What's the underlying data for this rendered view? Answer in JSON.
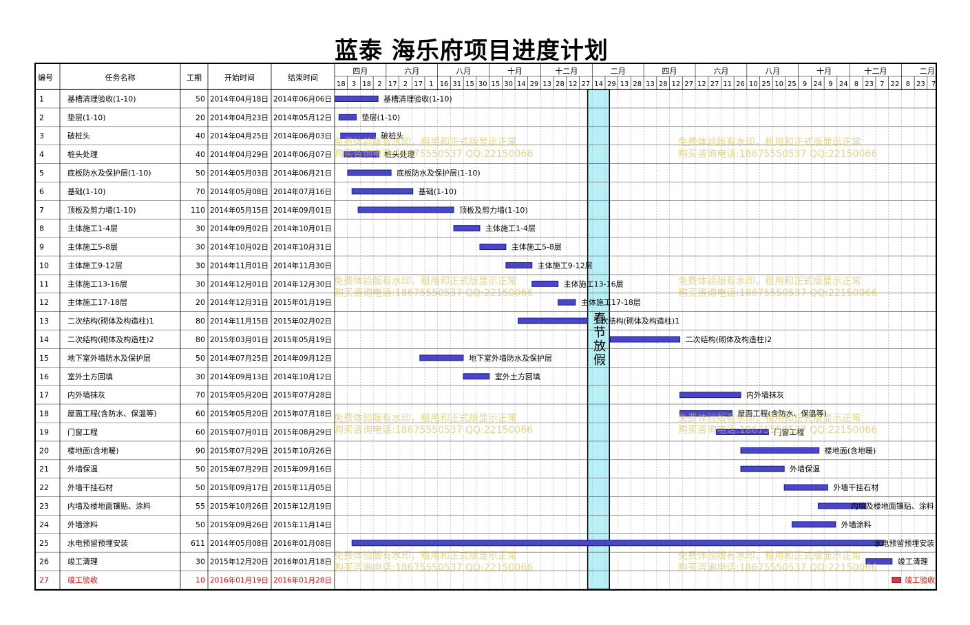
{
  "title": "蓝泰 海乐府项目进度计划",
  "columns": {
    "id": "编号",
    "name": "任务名称",
    "dur": "工期",
    "start": "开始时间",
    "end": "结束时间"
  },
  "chart_data": {
    "type": "gantt",
    "title": "蓝泰 海乐府项目进度计划",
    "month_labels": [
      "四月",
      "六月",
      "八月",
      "十月",
      "十二月",
      "二月",
      "四月",
      "六月",
      "八月",
      "十月",
      "十二月",
      "二月"
    ],
    "day_ticks": [
      "18",
      "3",
      "18",
      "2",
      "17",
      "2",
      "17",
      "1",
      "16",
      "31",
      "15",
      "30",
      "15",
      "30",
      "14",
      "29",
      "13",
      "28",
      "12",
      "27",
      "14",
      "29",
      "13",
      "28",
      "13",
      "28",
      "12",
      "27",
      "12",
      "27",
      "11",
      "26",
      "10",
      "25",
      "10",
      "25",
      "9",
      "24",
      "9",
      "24",
      "8",
      "23",
      "7",
      "22",
      "8",
      "23",
      "7"
    ],
    "holiday_label": "春节放假",
    "tasks": [
      {
        "id": "1",
        "name": "基槽清理验收(1-10)",
        "duration": 50,
        "start": "2014年04月18日",
        "end": "2014年06月06日"
      },
      {
        "id": "2",
        "name": "垫层(1-10)",
        "duration": 20,
        "start": "2014年04月23日",
        "end": "2014年05月12日"
      },
      {
        "id": "3",
        "name": "破桩头",
        "duration": 40,
        "start": "2014年04月25日",
        "end": "2014年06月03日"
      },
      {
        "id": "4",
        "name": "桩头处理",
        "duration": 40,
        "start": "2014年04月29日",
        "end": "2014年06月07日"
      },
      {
        "id": "5",
        "name": "底板防水及保护层(1-10)",
        "duration": 50,
        "start": "2014年05月03日",
        "end": "2014年06月21日"
      },
      {
        "id": "6",
        "name": "基础(1-10)",
        "duration": 70,
        "start": "2014年05月08日",
        "end": "2014年07月16日"
      },
      {
        "id": "7",
        "name": "顶板及剪力墙(1-10)",
        "duration": 110,
        "start": "2014年05月15日",
        "end": "2014年09月01日"
      },
      {
        "id": "8",
        "name": "主体施工1-4层",
        "duration": 30,
        "start": "2014年09月02日",
        "end": "2014年10月01日"
      },
      {
        "id": "9",
        "name": "主体施工5-8层",
        "duration": 30,
        "start": "2014年10月02日",
        "end": "2014年10月31日"
      },
      {
        "id": "10",
        "name": "主体施工9-12层",
        "duration": 30,
        "start": "2014年11月01日",
        "end": "2014年11月30日"
      },
      {
        "id": "11",
        "name": "主体施工13-16层",
        "duration": 30,
        "start": "2014年12月01日",
        "end": "2014年12月30日"
      },
      {
        "id": "12",
        "name": "主体施工17-18层",
        "duration": 20,
        "start": "2014年12月31日",
        "end": "2015年01月19日"
      },
      {
        "id": "13",
        "name": "二次结构(砌体及构造柱)1",
        "duration": 80,
        "start": "2014年11月15日",
        "end": "2015年02月02日"
      },
      {
        "id": "14",
        "name": "二次结构(砌体及构造柱)2",
        "duration": 80,
        "start": "2015年03月01日",
        "end": "2015年05月19日"
      },
      {
        "id": "15",
        "name": "地下室外墙防水及保护层",
        "duration": 50,
        "start": "2014年07月25日",
        "end": "2014年09月12日"
      },
      {
        "id": "16",
        "name": "室外土方回填",
        "duration": 30,
        "start": "2014年09月13日",
        "end": "2014年10月12日"
      },
      {
        "id": "17",
        "name": "内外墙抹灰",
        "duration": 70,
        "start": "2015年05月20日",
        "end": "2015年07月28日"
      },
      {
        "id": "18",
        "name": "屋面工程(含防水、保温等)",
        "duration": 60,
        "start": "2015年05月20日",
        "end": "2015年07月18日"
      },
      {
        "id": "19",
        "name": "门窗工程",
        "duration": 60,
        "start": "2015年07月01日",
        "end": "2015年08月29日"
      },
      {
        "id": "20",
        "name": "楼地面(含地暖)",
        "duration": 90,
        "start": "2015年07月29日",
        "end": "2015年10月26日"
      },
      {
        "id": "21",
        "name": "外墙保温",
        "duration": 50,
        "start": "2015年07月29日",
        "end": "2015年09月16日"
      },
      {
        "id": "22",
        "name": "外墙干挂石材",
        "duration": 50,
        "start": "2015年09月17日",
        "end": "2015年11月05日"
      },
      {
        "id": "23",
        "name": "内墙及楼地面镶贴、涂料",
        "duration": 55,
        "start": "2015年10月26日",
        "end": "2015年12月19日"
      },
      {
        "id": "24",
        "name": "外墙涂料",
        "duration": 50,
        "start": "2015年09月26日",
        "end": "2015年11月14日"
      },
      {
        "id": "25",
        "name": "水电预留预埋安装",
        "duration": 611,
        "start": "2014年05月08日",
        "end": "2016年01月08日"
      },
      {
        "id": "26",
        "name": "竣工清理",
        "duration": 30,
        "start": "2015年12月20日",
        "end": "2016年01月18日"
      },
      {
        "id": "27",
        "name": "竣工验收",
        "duration": 10,
        "start": "2016年01月19日",
        "end": "2016年01月28日"
      }
    ]
  },
  "watermark": {
    "line1": "免费体验版有水印，租用和正式版显示正常",
    "line2": "购买咨询电话:18675550537 QQ:22150066"
  },
  "colors": {
    "bar": "#4a46c8",
    "final_bar": "#cc3d4c",
    "holiday": "#b8f0f8",
    "final_text": "#dd0000"
  }
}
